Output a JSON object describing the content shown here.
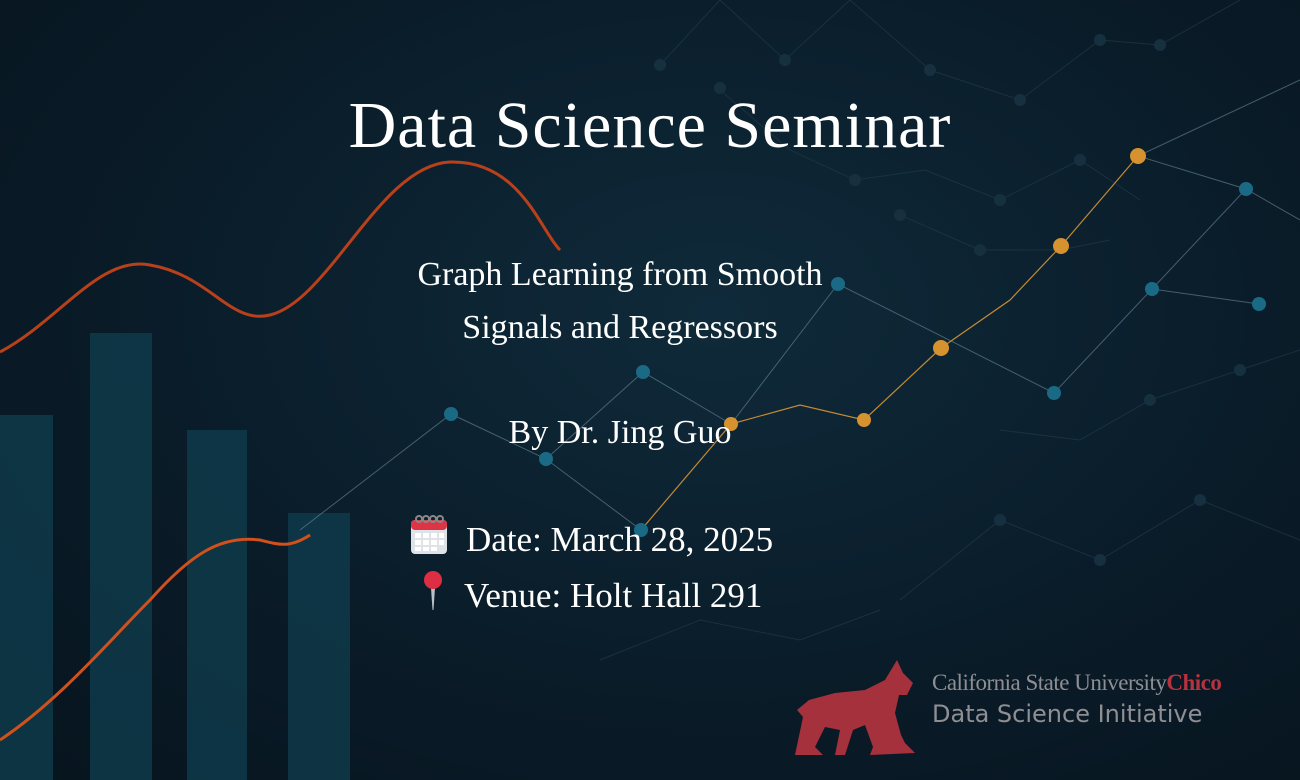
{
  "title": "Data Science Seminar",
  "talk": {
    "title_line1": "Graph Learning from Smooth",
    "title_line2": "Signals and Regressors",
    "speaker": "By Dr. Jing Guo"
  },
  "details": {
    "date": "Date: March 28, 2025",
    "venue": "Venue: Holt Hall 291",
    "date_icon": "calendar-icon",
    "venue_icon": "round-pushpin-icon"
  },
  "branding": {
    "university": "California State University",
    "campus": "Chico",
    "initiative": "Data Science Initiative",
    "logo": "wildcat-logo"
  },
  "colors": {
    "background": "#0a1c29",
    "accent_orange": "#d5922f",
    "node_blue": "#1a6a86",
    "bars": "#0f3a4a",
    "curve": "#c8461b",
    "chico_red": "#b5323f"
  }
}
